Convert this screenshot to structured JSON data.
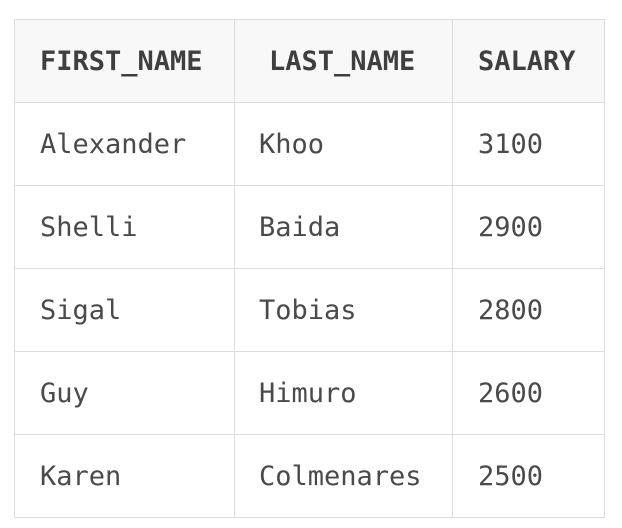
{
  "table": {
    "headers": [
      "FIRST_NAME",
      "LAST_NAME",
      "SALARY"
    ],
    "rows": [
      [
        "Alexander",
        "Khoo",
        "3100"
      ],
      [
        "Shelli",
        "Baida",
        "2900"
      ],
      [
        "Sigal",
        "Tobias",
        "2800"
      ],
      [
        "Guy",
        "Himuro",
        "2600"
      ],
      [
        "Karen",
        "Colmenares",
        "2500"
      ]
    ]
  },
  "colors": {
    "header_background": "#f8f8f8",
    "border": "#dcdcdc",
    "text": "#4a4a4a"
  }
}
